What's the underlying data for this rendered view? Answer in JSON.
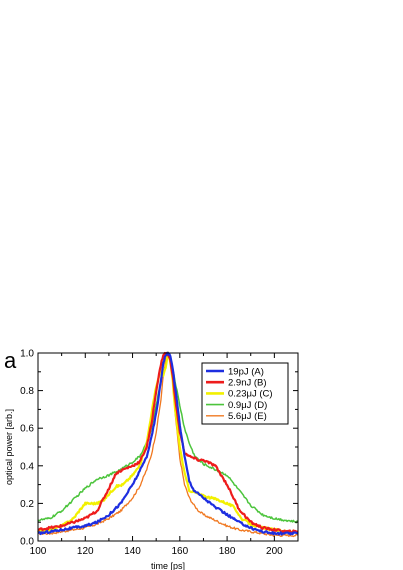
{
  "chart_data": {
    "type": "line",
    "panel_label": "a",
    "xlabel": "time [ps]",
    "ylabel": "optical power [arb.]",
    "xlim": [
      100,
      210
    ],
    "ylim": [
      0,
      1.0
    ],
    "x_ticks": [
      100,
      120,
      140,
      160,
      180,
      200
    ],
    "x_tick_labels": [
      "100",
      "120",
      "140",
      "160",
      "180",
      "200"
    ],
    "y_ticks": [
      0.0,
      0.2,
      0.4,
      0.6,
      0.8,
      1.0
    ],
    "y_tick_labels": [
      "0.0",
      "0.2",
      "0.4",
      "0.6",
      "0.8",
      "1.0"
    ],
    "grid": false,
    "legend_position": "top-right",
    "series": [
      {
        "name": "5.6μJ (E)",
        "color": "#f07820",
        "line_width": 1.3,
        "x": [
          100,
          105,
          110,
          115,
          120,
          125,
          130,
          135,
          140,
          143,
          146,
          148,
          150,
          152,
          153,
          154,
          155,
          156,
          157,
          158,
          160,
          162,
          164,
          166,
          168,
          170,
          175,
          180,
          185,
          190,
          195,
          200,
          205,
          210
        ],
        "y": [
          0.04,
          0.04,
          0.05,
          0.06,
          0.07,
          0.09,
          0.12,
          0.16,
          0.23,
          0.29,
          0.38,
          0.46,
          0.58,
          0.75,
          0.88,
          0.96,
          1.0,
          0.97,
          0.86,
          0.68,
          0.44,
          0.3,
          0.23,
          0.19,
          0.16,
          0.14,
          0.11,
          0.08,
          0.06,
          0.05,
          0.04,
          0.03,
          0.03,
          0.03
        ]
      },
      {
        "name": "0.9μJ (D)",
        "color": "#4cc43c",
        "line_width": 1.5,
        "x": [
          100,
          105,
          110,
          115,
          120,
          125,
          130,
          135,
          140,
          143,
          146,
          148,
          150,
          152,
          153,
          154,
          155,
          156,
          157,
          158,
          160,
          162,
          164,
          166,
          168,
          170,
          175,
          180,
          185,
          190,
          195,
          200,
          205,
          210
        ],
        "y": [
          0.11,
          0.12,
          0.16,
          0.22,
          0.28,
          0.33,
          0.35,
          0.38,
          0.42,
          0.45,
          0.52,
          0.6,
          0.72,
          0.86,
          0.94,
          0.99,
          1.0,
          0.97,
          0.92,
          0.85,
          0.72,
          0.6,
          0.52,
          0.46,
          0.43,
          0.41,
          0.38,
          0.35,
          0.27,
          0.19,
          0.14,
          0.12,
          0.11,
          0.1
        ]
      },
      {
        "name": "0.23μJ (C)",
        "color": "#f2f000",
        "line_width": 2.2,
        "x": [
          100,
          105,
          110,
          115,
          118,
          120,
          125,
          128,
          130,
          133,
          136,
          140,
          143,
          146,
          148,
          150,
          152,
          153,
          154,
          155,
          156,
          157,
          158,
          160,
          162,
          164,
          166,
          168,
          170,
          173,
          176,
          180,
          183,
          186,
          190,
          195,
          200,
          205,
          210
        ],
        "y": [
          0.05,
          0.06,
          0.08,
          0.12,
          0.17,
          0.2,
          0.2,
          0.22,
          0.25,
          0.29,
          0.3,
          0.35,
          0.4,
          0.52,
          0.68,
          0.82,
          0.92,
          0.88,
          0.92,
          1.0,
          0.95,
          0.85,
          0.7,
          0.5,
          0.36,
          0.27,
          0.26,
          0.25,
          0.24,
          0.23,
          0.22,
          0.2,
          0.18,
          0.12,
          0.09,
          0.07,
          0.06,
          0.05,
          0.05
        ]
      },
      {
        "name": "2.9nJ (B)",
        "color": "#ee1c1c",
        "line_width": 2.2,
        "x": [
          100,
          105,
          110,
          115,
          120,
          125,
          130,
          133,
          136,
          140,
          143,
          146,
          148,
          150,
          152,
          153,
          154,
          155,
          156,
          157,
          158,
          160,
          162,
          164,
          166,
          168,
          170,
          175,
          180,
          185,
          190,
          195,
          200,
          205,
          210
        ],
        "y": [
          0.06,
          0.07,
          0.08,
          0.1,
          0.12,
          0.16,
          0.28,
          0.36,
          0.38,
          0.4,
          0.42,
          0.5,
          0.62,
          0.8,
          0.94,
          0.99,
          1.0,
          0.99,
          0.96,
          0.88,
          0.76,
          0.58,
          0.47,
          0.45,
          0.44,
          0.43,
          0.43,
          0.4,
          0.3,
          0.17,
          0.1,
          0.07,
          0.06,
          0.05,
          0.05
        ]
      },
      {
        "name": "19pJ (A)",
        "color": "#1d2ee0",
        "line_width": 2.2,
        "x": [
          100,
          105,
          110,
          115,
          120,
          125,
          130,
          135,
          140,
          143,
          146,
          148,
          150,
          152,
          153,
          154,
          155,
          156,
          157,
          158,
          160,
          162,
          164,
          166,
          168,
          170,
          175,
          180,
          185,
          190,
          195,
          200,
          205,
          210
        ],
        "y": [
          0.04,
          0.05,
          0.06,
          0.07,
          0.08,
          0.1,
          0.14,
          0.2,
          0.3,
          0.37,
          0.45,
          0.55,
          0.68,
          0.85,
          0.95,
          0.99,
          1.0,
          0.98,
          0.92,
          0.82,
          0.62,
          0.45,
          0.32,
          0.27,
          0.25,
          0.23,
          0.18,
          0.14,
          0.1,
          0.07,
          0.05,
          0.04,
          0.04,
          0.04
        ]
      }
    ],
    "legend": [
      {
        "label": "19pJ (A)",
        "color": "#1d2ee0",
        "line_width": 2.6
      },
      {
        "label": "2.9nJ (B)",
        "color": "#ee1c1c",
        "line_width": 2.6
      },
      {
        "label": "0.23μJ (C)",
        "color": "#f2f000",
        "line_width": 2.6
      },
      {
        "label": "0.9μJ (D)",
        "color": "#4cc43c",
        "line_width": 1.6
      },
      {
        "label": "5.6μJ (E)",
        "color": "#f07820",
        "line_width": 1.3
      }
    ]
  }
}
